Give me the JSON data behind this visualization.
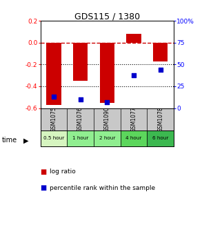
{
  "title": "GDS115 / 1380",
  "categories": [
    "GSM1075",
    "GSM1076",
    "GSM1090",
    "GSM1077",
    "GSM1078"
  ],
  "time_labels": [
    "0.5 hour",
    "1 hour",
    "2 hour",
    "4 hour",
    "6 hour"
  ],
  "time_colors": [
    "#d6f5c0",
    "#90ee90",
    "#90ee90",
    "#5cd65c",
    "#3cb850"
  ],
  "log_ratios": [
    -0.57,
    -0.35,
    -0.55,
    0.08,
    -0.17
  ],
  "percentiles": [
    13,
    10,
    7,
    38,
    44
  ],
  "ylim_left": [
    -0.6,
    0.2
  ],
  "ylim_right": [
    0,
    100
  ],
  "bar_color": "#cc0000",
  "dot_color": "#0000cc",
  "dashed_line_color": "#cc0000",
  "grid_color": "#000000",
  "bg_color": "#ffffff",
  "plot_bg": "#ffffff",
  "legend_log": "log ratio",
  "legend_pct": "percentile rank within the sample",
  "yticks_left": [
    -0.6,
    -0.4,
    -0.2,
    0.0,
    0.2
  ],
  "yticks_right": [
    0,
    25,
    50,
    75,
    100
  ],
  "ytick_labels_right": [
    "0",
    "25",
    "50",
    "75",
    "100%"
  ],
  "names_bg": "#c8c8c8",
  "bar_width": 0.55
}
